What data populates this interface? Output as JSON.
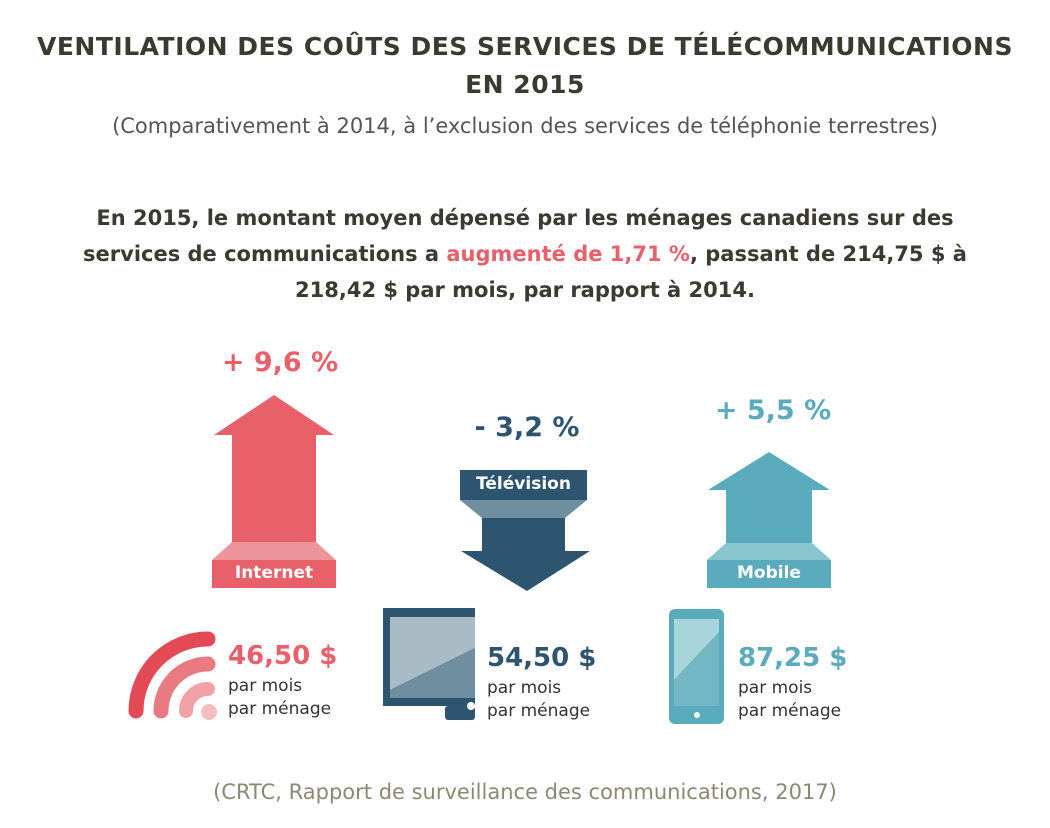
{
  "title": {
    "line1": "VENTILATION DES COÛTS DES SERVICES DE TÉLÉCOMMUNICATIONS",
    "line2": "EN 2015"
  },
  "subtitle": "(Comparativement à 2014, à l’exclusion des services de téléphonie terrestres)",
  "summary": {
    "part1": "En 2015, le montant moyen dépensé par les ménages canadiens sur des services de communications a ",
    "highlight": "augmenté de 1,71 %",
    "part2": ", passant de 214,75 $ à 218,42 $ par mois, par rapport à 2014."
  },
  "services": [
    {
      "name": "Internet",
      "change": "+ 9,6 %",
      "price": "46,50 $",
      "unit1": "par mois",
      "unit2": "par ménage",
      "color": "#e8606a",
      "icon": "wifi-icon"
    },
    {
      "name": "Télévision",
      "change": "- 3,2 %",
      "price": "54,50 $",
      "unit1": "par mois",
      "unit2": "par ménage",
      "color": "#2e5570",
      "icon": "monitor-icon"
    },
    {
      "name": "Mobile",
      "change": "+ 5,5 %",
      "price": "87,25 $",
      "unit1": "par mois",
      "unit2": "par ménage",
      "color": "#5aabbb",
      "icon": "smartphone-icon"
    }
  ],
  "source": "(CRTC, Rapport de surveillance des communications, 2017)"
}
